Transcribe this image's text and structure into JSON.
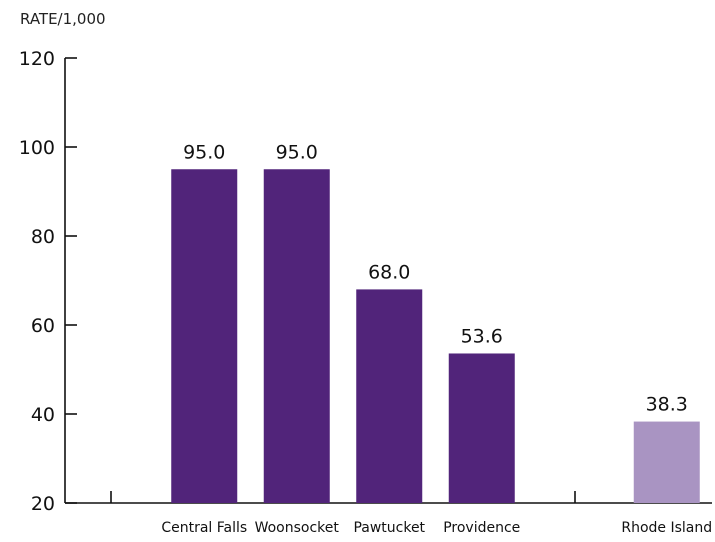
{
  "chart_data": {
    "type": "bar",
    "ylabel": "RATE/1,000",
    "xlabel": "",
    "title": "",
    "ylim": [
      20,
      120
    ],
    "yticks": [
      20,
      40,
      60,
      80,
      100,
      120
    ],
    "categories": [
      "Central Falls",
      "Woonsocket",
      "Pawtucket",
      "Providence",
      "",
      "Rhode Island"
    ],
    "values": [
      95.0,
      95.0,
      68.0,
      53.6,
      null,
      38.3
    ],
    "value_labels": [
      "95.0",
      "95.0",
      "68.0",
      "53.6",
      "",
      "38.3"
    ],
    "colors": [
      "#51247a",
      "#51247a",
      "#51247a",
      "#51247a",
      "",
      "#a994c2"
    ],
    "grid": false,
    "legend": "none"
  }
}
